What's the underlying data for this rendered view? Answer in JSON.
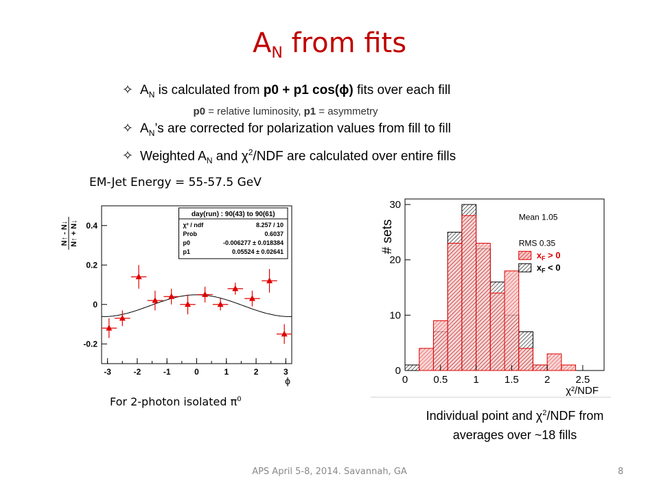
{
  "slide": {
    "title_main": "A",
    "title_sub": "N",
    "title_rest": " from fits",
    "bullet_symbol": "✧",
    "bullets": [
      {
        "a": "A",
        "sub": "N",
        "b": " is calculated from ",
        "bold": "p0 + p1 cos(",
        "phi": "ϕ",
        "bold2": ")",
        "c": " fits over each fill"
      },
      {
        "note_bold1": "p0",
        "note1": " = relative luminosity, ",
        "note_bold2": "p1",
        "note2": " = asymmetry"
      },
      {
        "a": "A",
        "sub": "N",
        "b": "’s are corrected for polarization values from fill to fill"
      },
      {
        "a": "Weighted A",
        "sub": "N",
        "b": " and χ",
        "sup": "2",
        "c": "/NDF are calculated over entire fills"
      }
    ],
    "emjet_label": "EM-Jet Energy = 55-57.5 GeV",
    "caption_left": "For 2-photon isolated π",
    "caption_left_sup": "0",
    "caption_right_1": "Individual point and χ",
    "caption_right_sup": "2",
    "caption_right_2": "/NDF  from",
    "caption_right_3": "averages over ~18 fills",
    "footer": "APS April 5-8, 2014. Savannah, GA",
    "page_number": "8",
    "accent_color": "#c00000"
  },
  "chart_data": [
    {
      "type": "scatter",
      "xlabel": "ϕ",
      "ylabel": "N↑ - N↓ / N↑ + N↓",
      "xlim": [
        -3.2,
        3.2
      ],
      "ylim": [
        -0.3,
        0.5
      ],
      "xticks": [
        -3,
        -2,
        -1,
        0,
        1,
        2,
        3
      ],
      "yticks": [
        -0.2,
        0,
        0.2,
        0.4
      ],
      "ytick_labels": [
        "-0.2",
        "0",
        "0.2",
        "0.4"
      ],
      "points": [
        {
          "x": -2.95,
          "y": -0.12,
          "yerr": 0.05
        },
        {
          "x": -2.5,
          "y": -0.07,
          "yerr": 0.04
        },
        {
          "x": -1.95,
          "y": 0.14,
          "yerr": 0.06
        },
        {
          "x": -1.4,
          "y": 0.02,
          "yerr": 0.05
        },
        {
          "x": -0.85,
          "y": 0.04,
          "yerr": 0.04
        },
        {
          "x": -0.3,
          "y": 0.0,
          "yerr": 0.05
        },
        {
          "x": 0.28,
          "y": 0.05,
          "yerr": 0.04
        },
        {
          "x": 0.8,
          "y": 0.0,
          "yerr": 0.03
        },
        {
          "x": 1.3,
          "y": 0.08,
          "yerr": 0.03
        },
        {
          "x": 1.87,
          "y": 0.03,
          "yerr": 0.04
        },
        {
          "x": 2.45,
          "y": 0.12,
          "yerr": 0.06
        },
        {
          "x": 2.95,
          "y": -0.15,
          "yerr": 0.05
        }
      ],
      "fit": {
        "p0": -0.006277,
        "p1": 0.05524
      },
      "stats_box": {
        "header": "day(run) : 90(43) to 90(61)",
        "rows": [
          {
            "label": "χ² / ndf",
            "value": "8.257 / 10"
          },
          {
            "label": "Prob",
            "value": "0.6037"
          },
          {
            "label": "p0",
            "value": "-0.006277 ± 0.018384"
          },
          {
            "label": "p1",
            "value": "0.05524 ± 0.02641"
          }
        ]
      },
      "colors": {
        "points": "#e00000",
        "fit": "#000000"
      }
    },
    {
      "type": "bar",
      "xlabel": "χ²/NDF",
      "ylabel": "# sets",
      "xlim": [
        0,
        2.8
      ],
      "ylim": [
        0,
        31
      ],
      "xticks": [
        0,
        0.5,
        1,
        1.5,
        2,
        2.5
      ],
      "xtick_labels": [
        "0",
        "0.5",
        "1",
        "1.5",
        "2",
        "2.5"
      ],
      "yticks": [
        0,
        10,
        20,
        30
      ],
      "bin_width": 0.2,
      "bin_starts": [
        0,
        0.2,
        0.4,
        0.6,
        0.8,
        1.0,
        1.2,
        1.4,
        1.6,
        1.8,
        2.0,
        2.2,
        2.4,
        2.6
      ],
      "series": [
        {
          "name": "x_F < 0",
          "values": [
            1,
            0,
            7,
            25,
            30,
            22,
            16,
            10,
            7,
            1,
            0,
            0,
            0,
            0
          ],
          "color": "#000000"
        },
        {
          "name": "x_F > 0",
          "values": [
            0,
            4,
            9,
            23,
            28,
            23,
            14,
            18,
            4,
            1,
            3,
            1,
            0,
            0
          ],
          "color": "#e00000"
        }
      ],
      "stats": {
        "mean_label": "Mean",
        "mean_value": "1.05",
        "rms_label": "RMS",
        "rms_value": "0.35"
      },
      "legend": [
        {
          "pre": "x",
          "sub": "F",
          "post": " > 0",
          "color": "#e00000"
        },
        {
          "pre": "x",
          "sub": "F",
          "post": " < 0",
          "color": "#000000"
        }
      ],
      "legend_placement": "top-right"
    }
  ]
}
